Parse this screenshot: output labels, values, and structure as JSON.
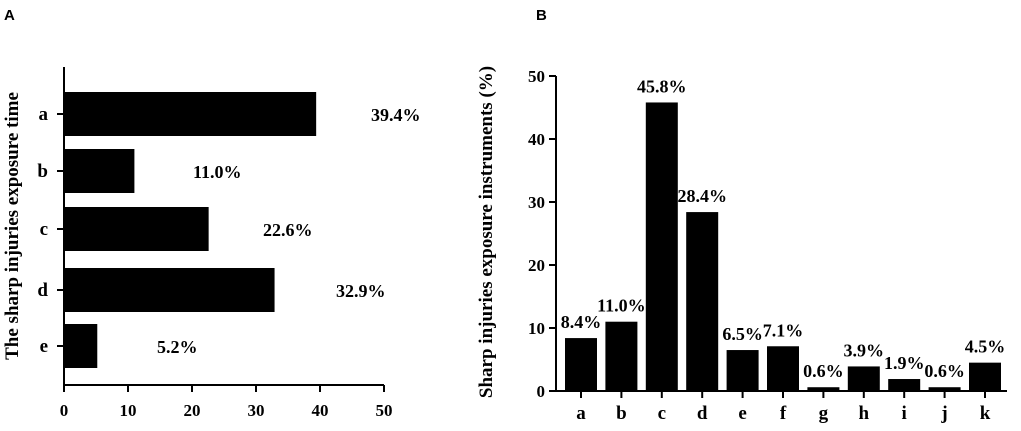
{
  "panels": {
    "left_letter": "A",
    "right_letter": "B"
  },
  "chart_data": [
    {
      "type": "bar",
      "orientation": "horizontal",
      "title": "",
      "ylabel": "The sharp injuries exposure time",
      "xlabel": "",
      "categories": [
        "a",
        "b",
        "c",
        "d",
        "e"
      ],
      "values": [
        39.4,
        11.0,
        22.6,
        32.9,
        5.2
      ],
      "data_labels": [
        "39.4%",
        "11.0%",
        "22.6%",
        "32.9%",
        "5.2%"
      ],
      "xlim": [
        0,
        50
      ],
      "xticks": [
        "0",
        "10",
        "20",
        "30",
        "40",
        "50"
      ],
      "bar_color": "#000000"
    },
    {
      "type": "bar",
      "orientation": "vertical",
      "title": "",
      "ylabel": "Sharp injuries exposure instruments (%)",
      "xlabel": "",
      "categories": [
        "a",
        "b",
        "c",
        "d",
        "e",
        "f",
        "g",
        "h",
        "i",
        "j",
        "k"
      ],
      "values": [
        8.4,
        11.0,
        45.8,
        28.4,
        6.5,
        7.1,
        0.6,
        3.9,
        1.9,
        0.6,
        4.5
      ],
      "data_labels": [
        "8.4%",
        "11.0%",
        "45.8%",
        "28.4%",
        "6.5%",
        "7.1%",
        "0.6%",
        "3.9%",
        "1.9%",
        "0.6%",
        "4.5%"
      ],
      "ylim": [
        0,
        50
      ],
      "yticks": [
        "0",
        "10",
        "20",
        "30",
        "40",
        "50"
      ],
      "bar_color": "#000000"
    }
  ]
}
